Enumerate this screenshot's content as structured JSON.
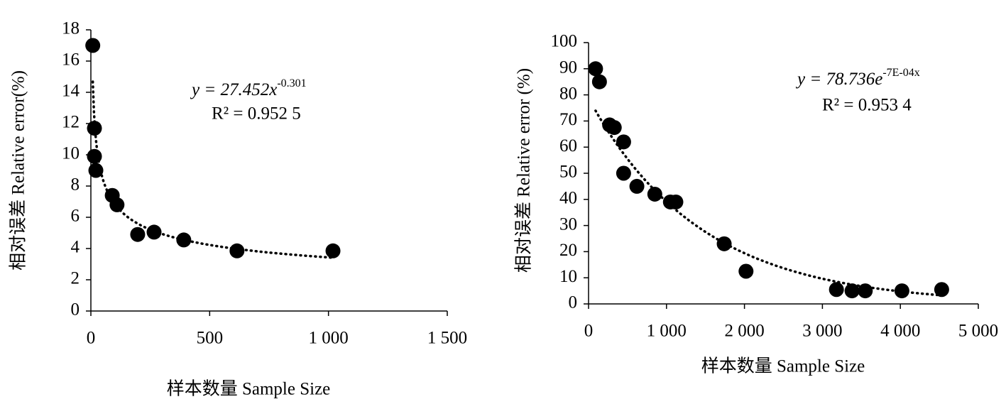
{
  "chart_data": [
    {
      "type": "scatter",
      "x_label": "样本数量 Sample Size",
      "y_label": "相对误差 Relative error(%)",
      "equation": "y = 27.452x",
      "equation_exponent": "-0.301",
      "r_squared": "R² = 0.952 5",
      "trendline": {
        "type": "power",
        "coefficient": 27.452,
        "exponent": -0.301
      },
      "x": [
        8,
        15,
        15,
        21,
        90,
        110,
        197,
        266,
        391,
        615,
        1019
      ],
      "values": [
        17,
        11.7,
        9.9,
        9.0,
        7.4,
        6.8,
        4.9,
        5.05,
        4.55,
        3.85,
        3.85
      ],
      "color": "#000000",
      "xlim": [
        0,
        1500
      ],
      "xticks": [
        0,
        500,
        {
          "value": 1000,
          "label": "1 000"
        },
        {
          "value": 1500,
          "label": "1 500"
        }
      ],
      "ylim": [
        0,
        18
      ],
      "yticks": [
        0,
        2,
        4,
        6,
        8,
        10,
        12,
        14,
        16,
        18
      ]
    },
    {
      "type": "scatter",
      "x_label": "样本数量 Sample Size",
      "y_label": "相对误差 Relative error (%)",
      "equation": "y = 78.736e",
      "equation_exponent": "-7E-04x",
      "r_squared": "R² = 0.953 4",
      "trendline": {
        "type": "exponential",
        "coefficient": 78.736,
        "exponent": -0.0007
      },
      "x": [
        90,
        140,
        270,
        330,
        450,
        450,
        620,
        850,
        1050,
        1120,
        1740,
        2020,
        3180,
        3380,
        3550,
        4020,
        4530
      ],
      "values": [
        90,
        85,
        68.5,
        67.5,
        62,
        50,
        45,
        42,
        39,
        39,
        23,
        12.5,
        5.5,
        5,
        5,
        5,
        5.5
      ],
      "color": "#000000",
      "xlim": [
        0,
        5000
      ],
      "xticks": [
        0,
        {
          "value": 1000,
          "label": "1 000"
        },
        {
          "value": 2000,
          "label": "2 000"
        },
        {
          "value": 3000,
          "label": "3 000"
        },
        {
          "value": 4000,
          "label": "4 000"
        },
        {
          "value": 5000,
          "label": "5 000"
        }
      ],
      "ylim": [
        0,
        100
      ],
      "yticks": [
        0,
        10,
        20,
        30,
        40,
        50,
        60,
        70,
        80,
        90,
        100
      ]
    }
  ]
}
